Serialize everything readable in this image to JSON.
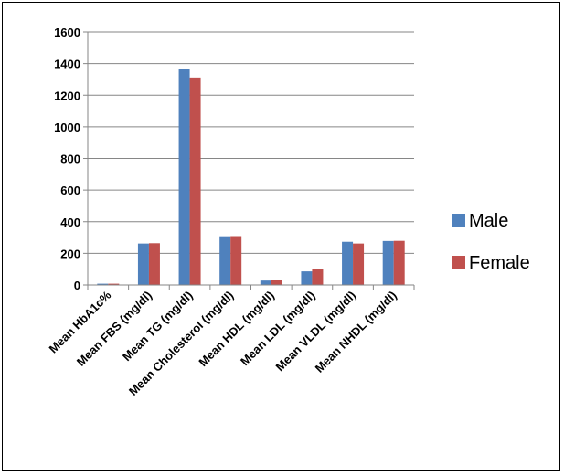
{
  "chart_data": {
    "type": "bar",
    "categories": [
      "Mean HbA1c%",
      "Mean FBS (mg/dl)",
      "Mean TG (mg/dl)",
      "Mean Cholesterol (mg/dl)",
      "Mean HDL (mg/dl)",
      "Mean LDL (mg/dl)",
      "Mean VLDL (mg/dl)",
      "Mean NHDL (mg/dl)"
    ],
    "series": [
      {
        "name": "Male",
        "color": "#4F81BD",
        "values": [
          8,
          262,
          1368,
          308,
          28,
          86,
          273,
          278
        ]
      },
      {
        "name": "Female",
        "color": "#C0504D",
        "values": [
          8,
          264,
          1312,
          309,
          31,
          100,
          262,
          279
        ]
      }
    ],
    "ylim": [
      0,
      1600
    ],
    "yticks": [
      "0",
      "200",
      "400",
      "600",
      "800",
      "1000",
      "1200",
      "1400",
      "1600"
    ],
    "grid": true,
    "legend": "right",
    "title": "",
    "xlabel": "",
    "ylabel": ""
  }
}
